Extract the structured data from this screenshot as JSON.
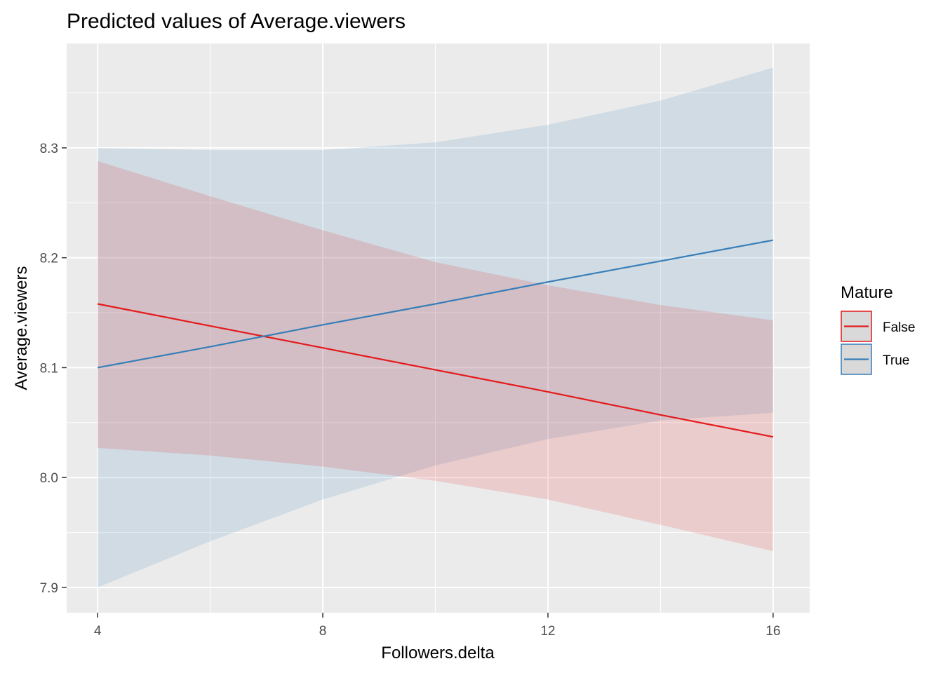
{
  "chart_data": {
    "type": "line",
    "title": "Predicted values of Average.viewers",
    "xlabel": "Followers.delta",
    "ylabel": "Average.viewers",
    "xlim": [
      3.45,
      16.65
    ],
    "ylim": [
      7.877,
      8.395
    ],
    "x_ticks": [
      4,
      8,
      12,
      16
    ],
    "x_tick_labels": [
      "4",
      "8",
      "12",
      "16"
    ],
    "x_minor_ticks": [
      6,
      10,
      14
    ],
    "y_ticks": [
      7.9,
      8.0,
      8.1,
      8.2,
      8.3
    ],
    "y_tick_labels": [
      "7.9",
      "8.0",
      "8.1",
      "8.2",
      "8.3"
    ],
    "y_minor_ticks": [
      7.95,
      8.05,
      8.15,
      8.25,
      8.35
    ],
    "grid": true,
    "legend": {
      "title": "Mature",
      "position": "right",
      "entries": [
        "False",
        "True"
      ]
    },
    "series": [
      {
        "name": "False",
        "color": "#e41a1c",
        "x": [
          4,
          6,
          8,
          10,
          12,
          14,
          16
        ],
        "values": [
          8.158,
          8.138,
          8.118,
          8.098,
          8.078,
          8.057,
          8.037
        ],
        "ci_lower": [
          8.027,
          8.02,
          8.01,
          7.997,
          7.98,
          7.957,
          7.933
        ],
        "ci_upper": [
          8.288,
          8.256,
          8.225,
          8.196,
          8.175,
          8.157,
          8.143
        ]
      },
      {
        "name": "True",
        "color": "#377eb8",
        "x": [
          4,
          6,
          8,
          10,
          12,
          14,
          16
        ],
        "values": [
          8.1,
          8.119,
          8.139,
          8.158,
          8.178,
          8.197,
          8.216
        ],
        "ci_lower": [
          7.9,
          7.942,
          7.98,
          8.011,
          8.035,
          8.052,
          8.059
        ],
        "ci_upper": [
          8.3,
          8.298,
          8.298,
          8.305,
          8.321,
          8.343,
          8.373
        ]
      }
    ]
  }
}
